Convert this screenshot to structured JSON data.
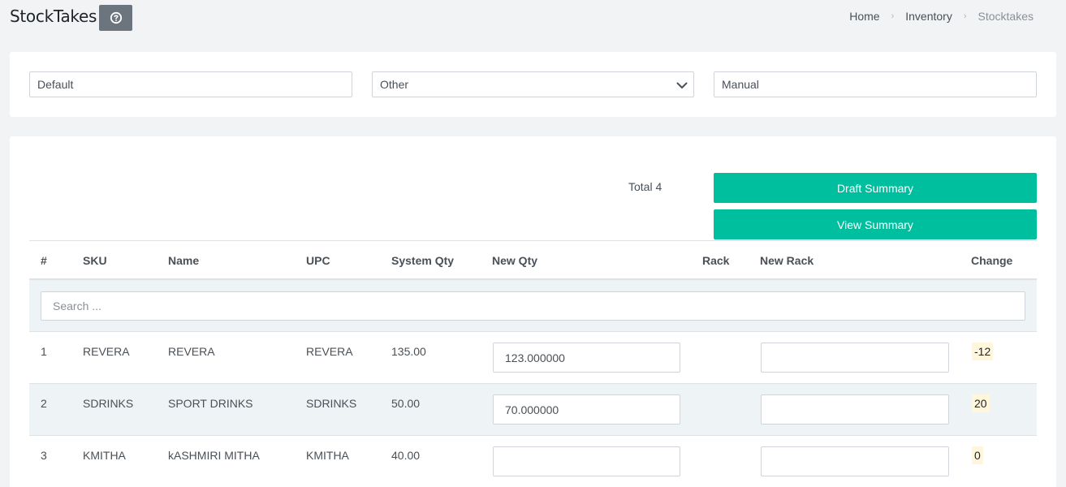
{
  "page": {
    "title": "StockTakes"
  },
  "breadcrumb": [
    "Home",
    "Inventory",
    "Stocktakes"
  ],
  "filters": {
    "first": "Default",
    "second": "Other",
    "third": "Manual"
  },
  "summary": {
    "total_label": "Total 4",
    "draft_button": "Draft Summary",
    "view_button": "View Summary"
  },
  "table": {
    "headers": {
      "num": "#",
      "sku": "SKU",
      "name": "Name",
      "upc": "UPC",
      "system_qty": "System Qty",
      "new_qty": "New Qty",
      "rack": "Rack",
      "new_rack": "New Rack",
      "change": "Change"
    },
    "search_placeholder": "Search ...",
    "rows": [
      {
        "num": "1",
        "sku": "REVERA",
        "name": "REVERA",
        "upc": "REVERA",
        "system_qty": "135.00",
        "new_qty": "123.000000",
        "new_rack": "",
        "change": "-12"
      },
      {
        "num": "2",
        "sku": "SDRINKS",
        "name": "SPORT DRINKS",
        "upc": "SDRINKS",
        "system_qty": "50.00",
        "new_qty": "70.000000",
        "new_rack": "",
        "change": "20"
      },
      {
        "num": "3",
        "sku": "KMITHA",
        "name": "kASHMIRI MITHA",
        "upc": "KMITHA",
        "system_qty": "40.00",
        "new_qty": "",
        "new_rack": "",
        "change": "0"
      }
    ]
  },
  "colors": {
    "accent": "#00bf9f",
    "help_button": "#6c757d",
    "row_alt": "#eef3f5",
    "badge": "#fff6dc"
  },
  "icons": {
    "help": "question-circle-icon",
    "chevron": "chevron-down-icon",
    "separator": "chevron-right-icon"
  }
}
